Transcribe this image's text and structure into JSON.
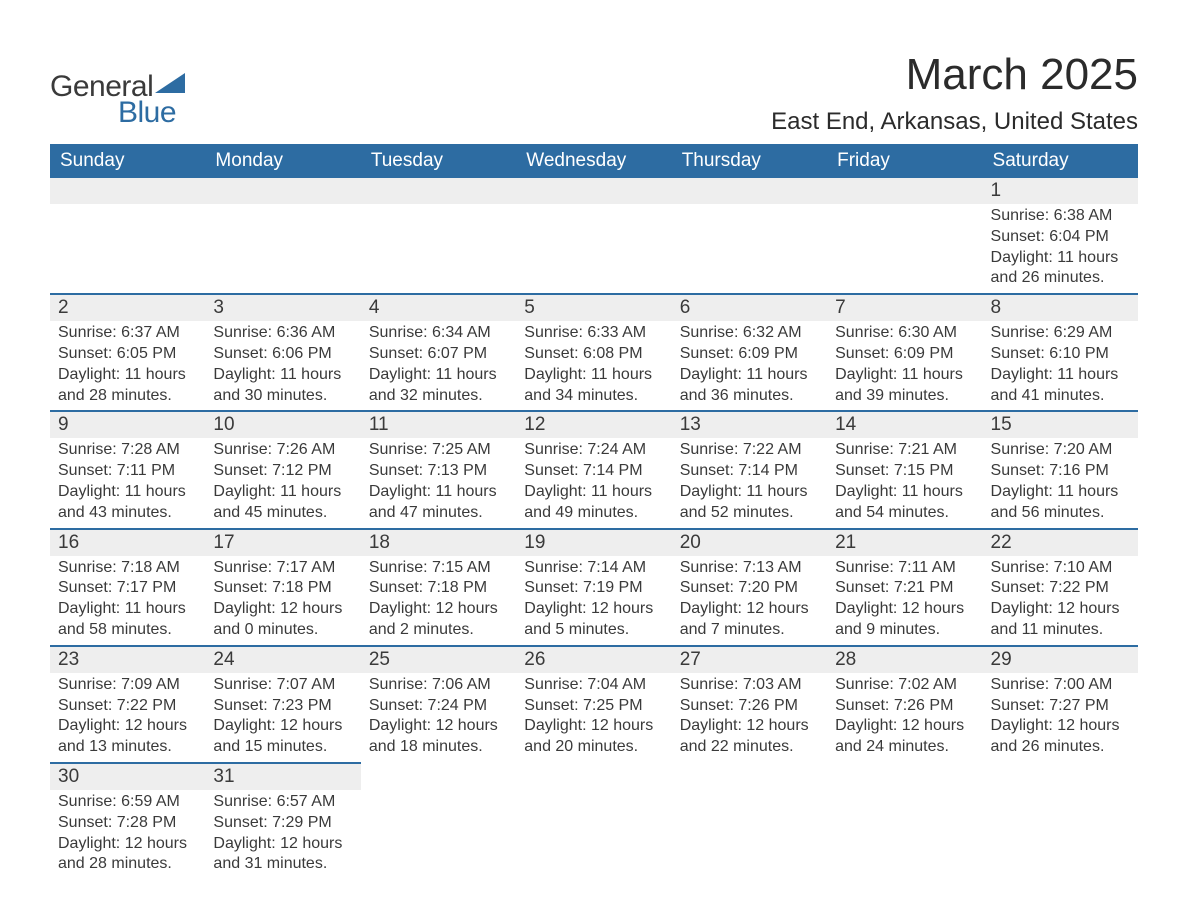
{
  "logo": {
    "word1": "General",
    "word2": "Blue",
    "shape_color": "#2d6ca2",
    "text_color_dark": "#3a3a3a"
  },
  "title": "March 2025",
  "location": "East End, Arkansas, United States",
  "colors": {
    "header_bg": "#2d6ca2",
    "header_text": "#ffffff",
    "daynum_bg": "#eeeeee",
    "row_border": "#2d6ca2",
    "body_text": "#3a3a3a",
    "background": "#ffffff"
  },
  "fonts": {
    "title_size_pt": 33,
    "location_size_pt": 18,
    "header_size_pt": 14,
    "daynum_size_pt": 14,
    "detail_size_pt": 12
  },
  "day_headers": [
    "Sunday",
    "Monday",
    "Tuesday",
    "Wednesday",
    "Thursday",
    "Friday",
    "Saturday"
  ],
  "weeks": [
    [
      null,
      null,
      null,
      null,
      null,
      null,
      {
        "n": "1",
        "sunrise": "Sunrise: 6:38 AM",
        "sunset": "Sunset: 6:04 PM",
        "daylight": "Daylight: 11 hours and 26 minutes."
      }
    ],
    [
      {
        "n": "2",
        "sunrise": "Sunrise: 6:37 AM",
        "sunset": "Sunset: 6:05 PM",
        "daylight": "Daylight: 11 hours and 28 minutes."
      },
      {
        "n": "3",
        "sunrise": "Sunrise: 6:36 AM",
        "sunset": "Sunset: 6:06 PM",
        "daylight": "Daylight: 11 hours and 30 minutes."
      },
      {
        "n": "4",
        "sunrise": "Sunrise: 6:34 AM",
        "sunset": "Sunset: 6:07 PM",
        "daylight": "Daylight: 11 hours and 32 minutes."
      },
      {
        "n": "5",
        "sunrise": "Sunrise: 6:33 AM",
        "sunset": "Sunset: 6:08 PM",
        "daylight": "Daylight: 11 hours and 34 minutes."
      },
      {
        "n": "6",
        "sunrise": "Sunrise: 6:32 AM",
        "sunset": "Sunset: 6:09 PM",
        "daylight": "Daylight: 11 hours and 36 minutes."
      },
      {
        "n": "7",
        "sunrise": "Sunrise: 6:30 AM",
        "sunset": "Sunset: 6:09 PM",
        "daylight": "Daylight: 11 hours and 39 minutes."
      },
      {
        "n": "8",
        "sunrise": "Sunrise: 6:29 AM",
        "sunset": "Sunset: 6:10 PM",
        "daylight": "Daylight: 11 hours and 41 minutes."
      }
    ],
    [
      {
        "n": "9",
        "sunrise": "Sunrise: 7:28 AM",
        "sunset": "Sunset: 7:11 PM",
        "daylight": "Daylight: 11 hours and 43 minutes."
      },
      {
        "n": "10",
        "sunrise": "Sunrise: 7:26 AM",
        "sunset": "Sunset: 7:12 PM",
        "daylight": "Daylight: 11 hours and 45 minutes."
      },
      {
        "n": "11",
        "sunrise": "Sunrise: 7:25 AM",
        "sunset": "Sunset: 7:13 PM",
        "daylight": "Daylight: 11 hours and 47 minutes."
      },
      {
        "n": "12",
        "sunrise": "Sunrise: 7:24 AM",
        "sunset": "Sunset: 7:14 PM",
        "daylight": "Daylight: 11 hours and 49 minutes."
      },
      {
        "n": "13",
        "sunrise": "Sunrise: 7:22 AM",
        "sunset": "Sunset: 7:14 PM",
        "daylight": "Daylight: 11 hours and 52 minutes."
      },
      {
        "n": "14",
        "sunrise": "Sunrise: 7:21 AM",
        "sunset": "Sunset: 7:15 PM",
        "daylight": "Daylight: 11 hours and 54 minutes."
      },
      {
        "n": "15",
        "sunrise": "Sunrise: 7:20 AM",
        "sunset": "Sunset: 7:16 PM",
        "daylight": "Daylight: 11 hours and 56 minutes."
      }
    ],
    [
      {
        "n": "16",
        "sunrise": "Sunrise: 7:18 AM",
        "sunset": "Sunset: 7:17 PM",
        "daylight": "Daylight: 11 hours and 58 minutes."
      },
      {
        "n": "17",
        "sunrise": "Sunrise: 7:17 AM",
        "sunset": "Sunset: 7:18 PM",
        "daylight": "Daylight: 12 hours and 0 minutes."
      },
      {
        "n": "18",
        "sunrise": "Sunrise: 7:15 AM",
        "sunset": "Sunset: 7:18 PM",
        "daylight": "Daylight: 12 hours and 2 minutes."
      },
      {
        "n": "19",
        "sunrise": "Sunrise: 7:14 AM",
        "sunset": "Sunset: 7:19 PM",
        "daylight": "Daylight: 12 hours and 5 minutes."
      },
      {
        "n": "20",
        "sunrise": "Sunrise: 7:13 AM",
        "sunset": "Sunset: 7:20 PM",
        "daylight": "Daylight: 12 hours and 7 minutes."
      },
      {
        "n": "21",
        "sunrise": "Sunrise: 7:11 AM",
        "sunset": "Sunset: 7:21 PM",
        "daylight": "Daylight: 12 hours and 9 minutes."
      },
      {
        "n": "22",
        "sunrise": "Sunrise: 7:10 AM",
        "sunset": "Sunset: 7:22 PM",
        "daylight": "Daylight: 12 hours and 11 minutes."
      }
    ],
    [
      {
        "n": "23",
        "sunrise": "Sunrise: 7:09 AM",
        "sunset": "Sunset: 7:22 PM",
        "daylight": "Daylight: 12 hours and 13 minutes."
      },
      {
        "n": "24",
        "sunrise": "Sunrise: 7:07 AM",
        "sunset": "Sunset: 7:23 PM",
        "daylight": "Daylight: 12 hours and 15 minutes."
      },
      {
        "n": "25",
        "sunrise": "Sunrise: 7:06 AM",
        "sunset": "Sunset: 7:24 PM",
        "daylight": "Daylight: 12 hours and 18 minutes."
      },
      {
        "n": "26",
        "sunrise": "Sunrise: 7:04 AM",
        "sunset": "Sunset: 7:25 PM",
        "daylight": "Daylight: 12 hours and 20 minutes."
      },
      {
        "n": "27",
        "sunrise": "Sunrise: 7:03 AM",
        "sunset": "Sunset: 7:26 PM",
        "daylight": "Daylight: 12 hours and 22 minutes."
      },
      {
        "n": "28",
        "sunrise": "Sunrise: 7:02 AM",
        "sunset": "Sunset: 7:26 PM",
        "daylight": "Daylight: 12 hours and 24 minutes."
      },
      {
        "n": "29",
        "sunrise": "Sunrise: 7:00 AM",
        "sunset": "Sunset: 7:27 PM",
        "daylight": "Daylight: 12 hours and 26 minutes."
      }
    ],
    [
      {
        "n": "30",
        "sunrise": "Sunrise: 6:59 AM",
        "sunset": "Sunset: 7:28 PM",
        "daylight": "Daylight: 12 hours and 28 minutes."
      },
      {
        "n": "31",
        "sunrise": "Sunrise: 6:57 AM",
        "sunset": "Sunset: 7:29 PM",
        "daylight": "Daylight: 12 hours and 31 minutes."
      },
      null,
      null,
      null,
      null,
      null
    ]
  ]
}
